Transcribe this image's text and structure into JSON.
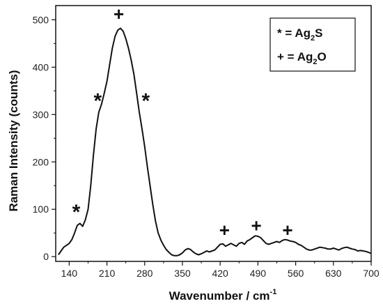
{
  "chart_data": {
    "type": "line",
    "title": "",
    "xlabel": "Wavenumber / cm",
    "xlabel_sup": "-1",
    "ylabel": "Raman Intensity (counts)",
    "xlim": [
      115,
      700
    ],
    "ylim": [
      -10,
      530
    ],
    "xticks": [
      140,
      210,
      280,
      350,
      420,
      490,
      560,
      630,
      700
    ],
    "yticks": [
      0,
      100,
      200,
      300,
      400,
      500
    ],
    "grid": false,
    "legend_position": "top-right",
    "legend": [
      {
        "symbol": "*",
        "eq": " = ",
        "base": "Ag",
        "sub": "2",
        "tail": "S"
      },
      {
        "symbol": "+",
        "eq": " = ",
        "base": "Ag",
        "sub": "2",
        "tail": "O"
      }
    ],
    "markers": [
      {
        "symbol": "*",
        "x": 153,
        "y": 100
      },
      {
        "symbol": "*",
        "x": 193,
        "y": 335
      },
      {
        "symbol": "+",
        "x": 232,
        "y": 512
      },
      {
        "symbol": "*",
        "x": 282,
        "y": 335
      },
      {
        "symbol": "+",
        "x": 428,
        "y": 56
      },
      {
        "symbol": "+",
        "x": 487,
        "y": 66
      },
      {
        "symbol": "+",
        "x": 545,
        "y": 56
      }
    ],
    "series": [
      {
        "x": [
          120,
          125,
          130,
          135,
          140,
          145,
          150,
          155,
          160,
          165,
          170,
          175,
          180,
          185,
          190,
          195,
          200,
          205,
          210,
          215,
          220,
          225,
          230,
          235,
          240,
          245,
          250,
          255,
          260,
          265,
          270,
          275,
          280,
          285,
          290,
          295,
          300,
          305,
          310,
          315,
          320,
          325,
          330,
          335,
          340,
          345,
          350,
          355,
          360,
          365,
          370,
          375,
          380,
          385,
          390,
          395,
          400,
          405,
          410,
          415,
          420,
          425,
          430,
          435,
          440,
          445,
          450,
          455,
          460,
          465,
          470,
          475,
          480,
          485,
          490,
          495,
          500,
          505,
          510,
          515,
          520,
          525,
          530,
          535,
          540,
          545,
          550,
          555,
          560,
          565,
          570,
          575,
          580,
          585,
          590,
          595,
          600,
          605,
          610,
          615,
          620,
          625,
          630,
          635,
          640,
          645,
          650,
          655,
          660,
          665,
          670,
          675,
          680,
          685,
          690,
          695,
          700
        ],
        "y": [
          4,
          12,
          20,
          24,
          28,
          36,
          50,
          66,
          70,
          64,
          78,
          100,
          150,
          215,
          270,
          305,
          322,
          345,
          370,
          405,
          440,
          465,
          478,
          482,
          476,
          460,
          440,
          415,
          385,
          345,
          305,
          270,
          232,
          190,
          150,
          110,
          75,
          50,
          35,
          24,
          15,
          9,
          4,
          2,
          2,
          4,
          8,
          14,
          17,
          15,
          10,
          6,
          4,
          6,
          9,
          12,
          10,
          12,
          14,
          20,
          26,
          27,
          22,
          25,
          28,
          25,
          22,
          28,
          30,
          26,
          33,
          36,
          40,
          44,
          43,
          40,
          34,
          28,
          26,
          28,
          30,
          32,
          30,
          34,
          36,
          35,
          33,
          32,
          30,
          26,
          24,
          20,
          16,
          14,
          14,
          16,
          18,
          20,
          19,
          18,
          16,
          16,
          18,
          16,
          14,
          17,
          19,
          20,
          18,
          16,
          15,
          12,
          13,
          12,
          11,
          9,
          7
        ]
      }
    ]
  }
}
